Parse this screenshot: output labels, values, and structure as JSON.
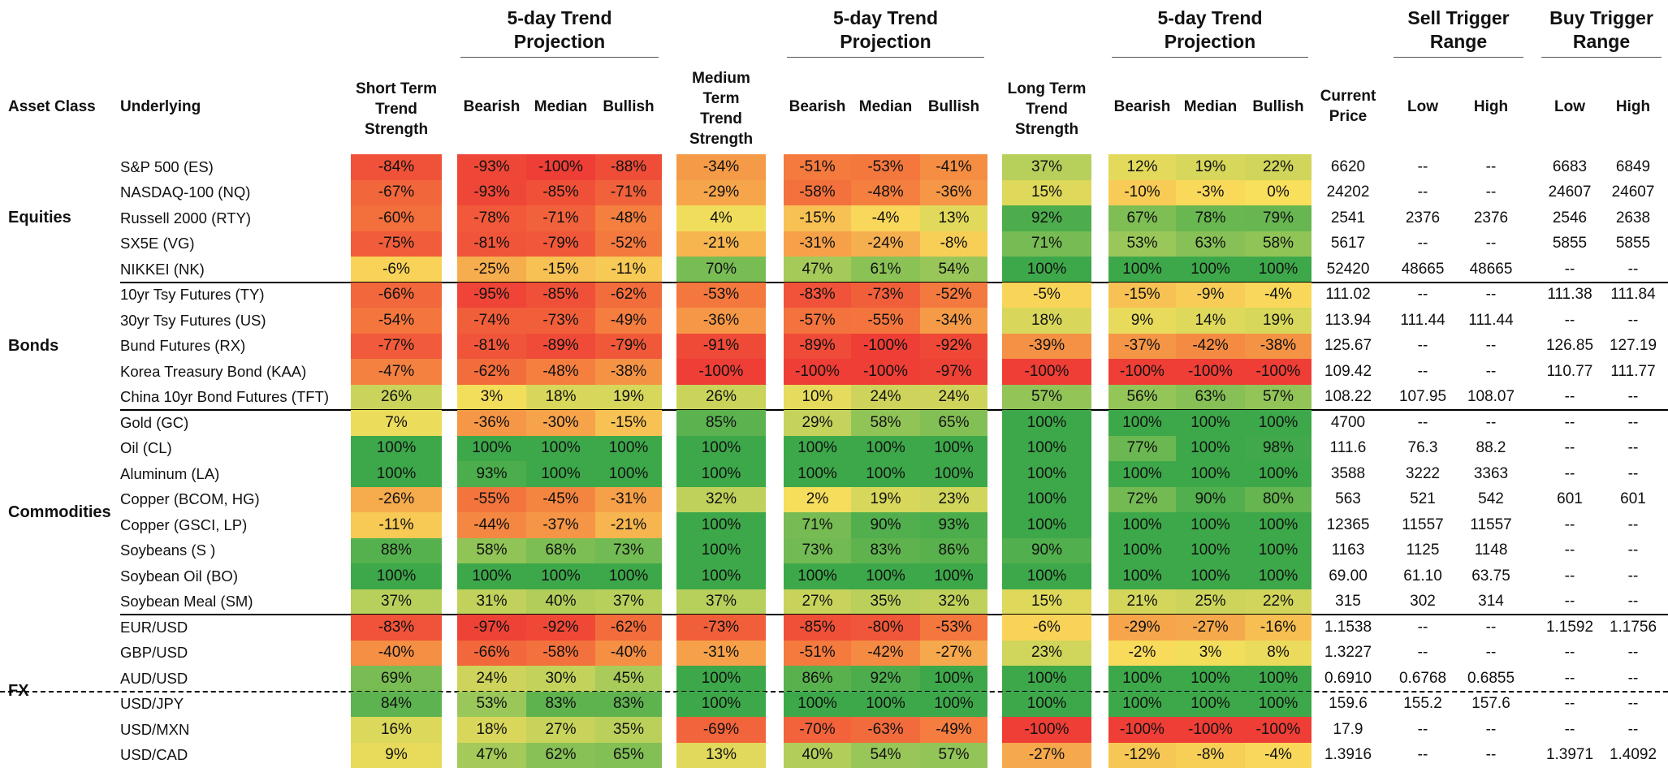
{
  "header": {
    "groups": [
      "5-day Trend Projection",
      "5-day Trend Projection",
      "5-day Trend Projection",
      "Sell Trigger Range",
      "Buy Trigger Range"
    ],
    "columns": [
      "Asset Class",
      "Underlying",
      "Short Term Trend Strength",
      "Bearish",
      "Median",
      "Bullish",
      "Medium Term Trend Strength",
      "Bearish",
      "Median",
      "Bullish",
      "Long Term Trend Strength",
      "Bearish",
      "Median",
      "Bullish",
      "Current Price",
      "Low",
      "High",
      "Low",
      "High"
    ]
  },
  "groups": [
    {
      "label": "Equities",
      "rows": [
        {
          "underlying": "S&P 500 (ES)",
          "cells": [
            "-84%",
            "-93%",
            "-100%",
            "-88%",
            "-34%",
            "-51%",
            "-53%",
            "-41%",
            "37%",
            "12%",
            "19%",
            "22%",
            "6620",
            "--",
            "--",
            "6683",
            "6849"
          ]
        },
        {
          "underlying": "NASDAQ-100 (NQ)",
          "cells": [
            "-67%",
            "-93%",
            "-85%",
            "-71%",
            "-29%",
            "-58%",
            "-48%",
            "-36%",
            "15%",
            "-10%",
            "-3%",
            "0%",
            "24202",
            "--",
            "--",
            "24607",
            "24607"
          ]
        },
        {
          "underlying": "Russell 2000 (RTY)",
          "cells": [
            "-60%",
            "-78%",
            "-71%",
            "-48%",
            "4%",
            "-15%",
            "-4%",
            "13%",
            "92%",
            "67%",
            "78%",
            "79%",
            "2541",
            "2376",
            "2376",
            "2546",
            "2638"
          ]
        },
        {
          "underlying": "SX5E (VG)",
          "cells": [
            "-75%",
            "-81%",
            "-79%",
            "-52%",
            "-21%",
            "-31%",
            "-24%",
            "-8%",
            "71%",
            "53%",
            "63%",
            "58%",
            "5617",
            "--",
            "--",
            "5855",
            "5855"
          ]
        },
        {
          "underlying": "NIKKEI (NK)",
          "cells": [
            "-6%",
            "-25%",
            "-15%",
            "-11%",
            "70%",
            "47%",
            "61%",
            "54%",
            "100%",
            "100%",
            "100%",
            "100%",
            "52420",
            "48665",
            "48665",
            "--",
            "--"
          ]
        }
      ]
    },
    {
      "label": "Bonds",
      "rows": [
        {
          "underlying": "10yr Tsy Futures (TY)",
          "cells": [
            "-66%",
            "-95%",
            "-85%",
            "-62%",
            "-53%",
            "-83%",
            "-73%",
            "-52%",
            "-5%",
            "-15%",
            "-9%",
            "-4%",
            "111.02",
            "--",
            "--",
            "111.38",
            "111.84"
          ]
        },
        {
          "underlying": "30yr Tsy Futures (US)",
          "cells": [
            "-54%",
            "-74%",
            "-73%",
            "-49%",
            "-36%",
            "-57%",
            "-55%",
            "-34%",
            "18%",
            "9%",
            "14%",
            "19%",
            "113.94",
            "111.44",
            "111.44",
            "--",
            "--"
          ]
        },
        {
          "underlying": "Bund Futures (RX)",
          "cells": [
            "-77%",
            "-81%",
            "-89%",
            "-79%",
            "-91%",
            "-89%",
            "-100%",
            "-92%",
            "-39%",
            "-37%",
            "-42%",
            "-38%",
            "125.67",
            "--",
            "--",
            "126.85",
            "127.19"
          ]
        },
        {
          "underlying": "Korea Treasury Bond (KAA)",
          "cells": [
            "-47%",
            "-62%",
            "-48%",
            "-38%",
            "-100%",
            "-100%",
            "-100%",
            "-97%",
            "-100%",
            "-100%",
            "-100%",
            "-100%",
            "109.42",
            "--",
            "--",
            "110.77",
            "111.77"
          ]
        },
        {
          "underlying": "China 10yr Bond Futures (TFT)",
          "cells": [
            "26%",
            "3%",
            "18%",
            "19%",
            "26%",
            "10%",
            "24%",
            "24%",
            "57%",
            "56%",
            "63%",
            "57%",
            "108.22",
            "107.95",
            "108.07",
            "--",
            "--"
          ]
        }
      ]
    },
    {
      "label": "Commodities",
      "rows": [
        {
          "underlying": "Gold (GC)",
          "cells": [
            "7%",
            "-36%",
            "-30%",
            "-15%",
            "85%",
            "29%",
            "58%",
            "65%",
            "100%",
            "100%",
            "100%",
            "100%",
            "4700",
            "--",
            "--",
            "--",
            "--"
          ]
        },
        {
          "underlying": "Oil (CL)",
          "cells": [
            "100%",
            "100%",
            "100%",
            "100%",
            "100%",
            "100%",
            "100%",
            "100%",
            "100%",
            "77%",
            "100%",
            "98%",
            "111.6",
            "76.3",
            "88.2",
            "--",
            "--"
          ]
        },
        {
          "underlying": "Aluminum (LA)",
          "cells": [
            "100%",
            "93%",
            "100%",
            "100%",
            "100%",
            "100%",
            "100%",
            "100%",
            "100%",
            "100%",
            "100%",
            "100%",
            "3588",
            "3222",
            "3363",
            "--",
            "--"
          ]
        },
        {
          "underlying": "Copper (BCOM, HG)",
          "cells": [
            "-26%",
            "-55%",
            "-45%",
            "-31%",
            "32%",
            "2%",
            "19%",
            "23%",
            "100%",
            "72%",
            "90%",
            "80%",
            "563",
            "521",
            "542",
            "601",
            "601"
          ]
        },
        {
          "underlying": "Copper (GSCI, LP)",
          "cells": [
            "-11%",
            "-44%",
            "-37%",
            "-21%",
            "100%",
            "71%",
            "90%",
            "93%",
            "100%",
            "100%",
            "100%",
            "100%",
            "12365",
            "11557",
            "11557",
            "--",
            "--"
          ]
        },
        {
          "underlying": "Soybeans (S )",
          "cells": [
            "88%",
            "58%",
            "68%",
            "73%",
            "100%",
            "73%",
            "83%",
            "86%",
            "90%",
            "100%",
            "100%",
            "100%",
            "1163",
            "1125",
            "1148",
            "--",
            "--"
          ]
        },
        {
          "underlying": "Soybean Oil (BO)",
          "cells": [
            "100%",
            "100%",
            "100%",
            "100%",
            "100%",
            "100%",
            "100%",
            "100%",
            "100%",
            "100%",
            "100%",
            "100%",
            "69.00",
            "61.10",
            "63.75",
            "--",
            "--"
          ]
        },
        {
          "underlying": "Soybean Meal (SM)",
          "cells": [
            "37%",
            "31%",
            "40%",
            "37%",
            "37%",
            "27%",
            "35%",
            "32%",
            "15%",
            "21%",
            "25%",
            "22%",
            "315",
            "302",
            "314",
            "--",
            "--"
          ]
        }
      ]
    },
    {
      "label": "FX",
      "rows": [
        {
          "underlying": "EUR/USD",
          "cells": [
            "-83%",
            "-97%",
            "-92%",
            "-62%",
            "-73%",
            "-85%",
            "-80%",
            "-53%",
            "-6%",
            "-29%",
            "-27%",
            "-16%",
            "1.1538",
            "--",
            "--",
            "1.1592",
            "1.1756"
          ]
        },
        {
          "underlying": "GBP/USD",
          "cells": [
            "-40%",
            "-66%",
            "-58%",
            "-40%",
            "-31%",
            "-51%",
            "-42%",
            "-27%",
            "23%",
            "-2%",
            "3%",
            "8%",
            "1.3227",
            "--",
            "--",
            "--",
            "--"
          ]
        },
        {
          "underlying": "AUD/USD",
          "cells": [
            "69%",
            "24%",
            "30%",
            "45%",
            "100%",
            "86%",
            "92%",
            "100%",
            "100%",
            "100%",
            "100%",
            "100%",
            "0.6910",
            "0.6768",
            "0.6855",
            "--",
            "--"
          ]
        },
        {
          "underlying": "USD/JPY",
          "cells": [
            "84%",
            "53%",
            "83%",
            "83%",
            "100%",
            "100%",
            "100%",
            "100%",
            "100%",
            "100%",
            "100%",
            "100%",
            "159.6",
            "155.2",
            "157.6",
            "--",
            "--"
          ]
        },
        {
          "underlying": "USD/MXN",
          "cells": [
            "16%",
            "18%",
            "27%",
            "35%",
            "-69%",
            "-70%",
            "-63%",
            "-49%",
            "-100%",
            "-100%",
            "-100%",
            "-100%",
            "17.9",
            "--",
            "--",
            "--",
            "--"
          ]
        },
        {
          "underlying": "USD/CAD",
          "cells": [
            "9%",
            "47%",
            "62%",
            "65%",
            "13%",
            "40%",
            "54%",
            "57%",
            "-27%",
            "-12%",
            "-8%",
            "-4%",
            "1.3916",
            "--",
            "--",
            "1.3971",
            "1.4092"
          ]
        }
      ]
    }
  ]
}
